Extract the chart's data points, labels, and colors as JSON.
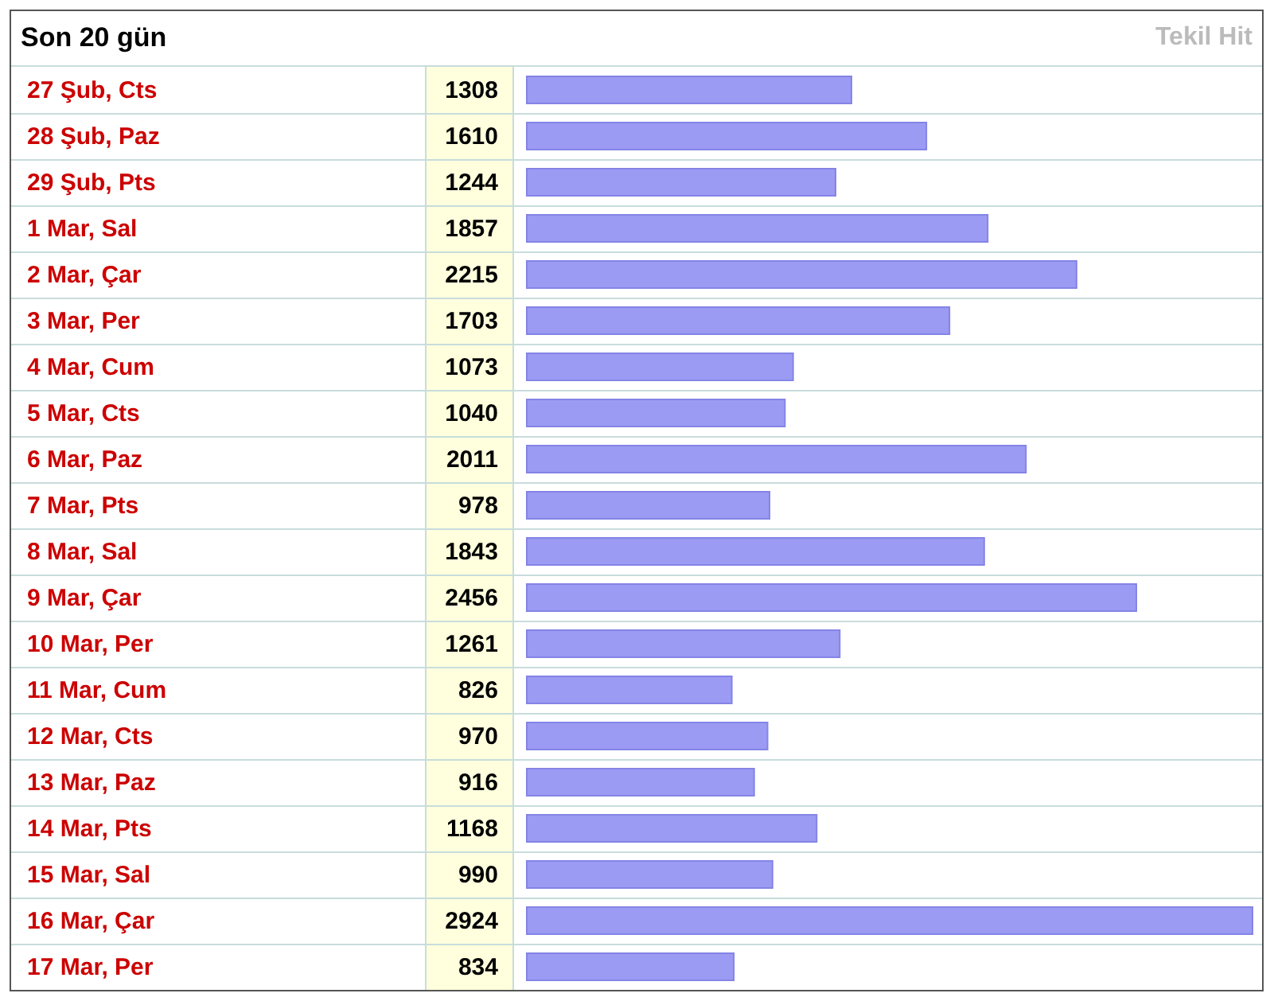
{
  "chart_data": {
    "type": "bar",
    "orientation": "horizontal",
    "title": "Son 20 gün",
    "subtitle": "Tekil Hit",
    "categories": [
      "27 Şub, Cts",
      "28 Şub, Paz",
      "29 Şub, Pts",
      "1 Mar, Sal",
      "2 Mar, Çar",
      "3 Mar, Per",
      "4 Mar, Cum",
      "5 Mar, Cts",
      "6 Mar, Paz",
      "7 Mar, Pts",
      "8 Mar, Sal",
      "9 Mar, Çar",
      "10 Mar, Per",
      "11 Mar, Cum",
      "12 Mar, Cts",
      "13 Mar, Paz",
      "14 Mar, Pts",
      "15 Mar, Sal",
      "16 Mar, Çar",
      "17 Mar, Per"
    ],
    "values": [
      1308,
      1610,
      1244,
      1857,
      2215,
      1703,
      1073,
      1040,
      2011,
      978,
      1843,
      2456,
      1261,
      826,
      970,
      916,
      1168,
      990,
      2924,
      834
    ],
    "color": "#9b9bf4",
    "data_labels": true
  }
}
